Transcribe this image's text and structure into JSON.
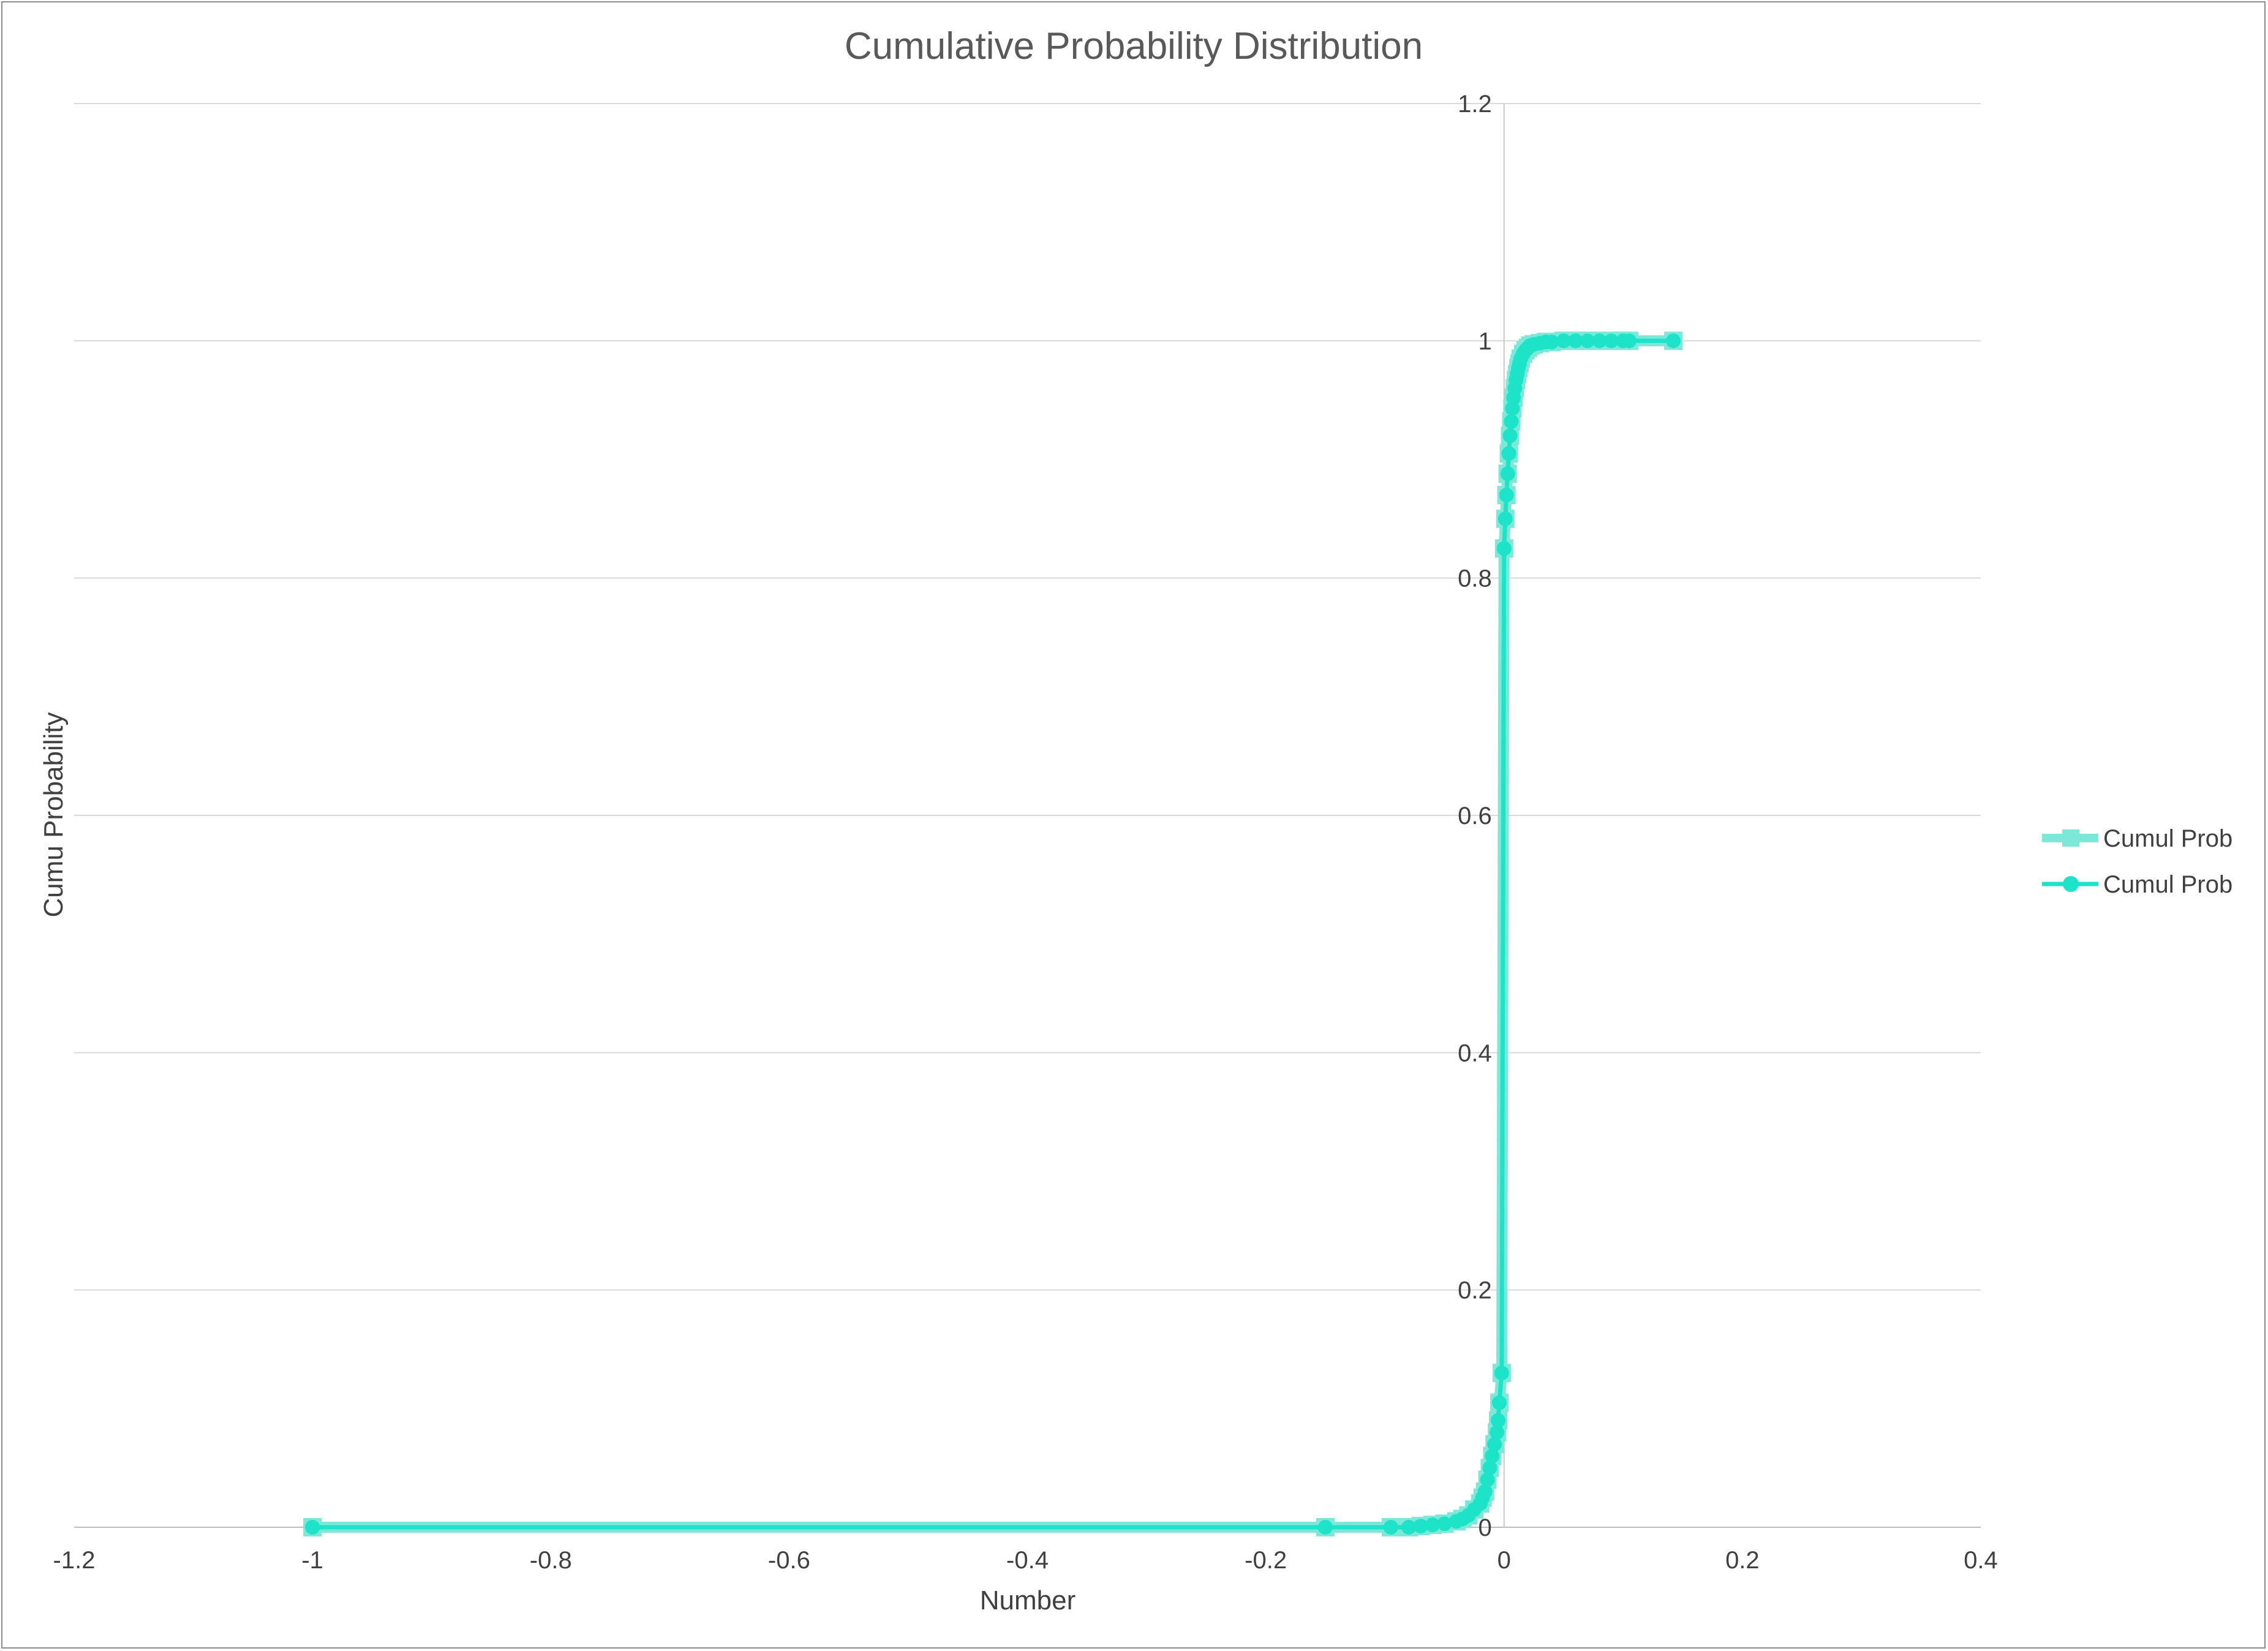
{
  "chart_data": {
    "type": "scatter",
    "title": "Cumulative Probability Distribution",
    "xlabel": "Number",
    "ylabel": "Cumu Probability",
    "xlim": [
      -1.2,
      0.4
    ],
    "ylim": [
      0,
      1.2
    ],
    "xticks": [
      -1.2,
      -1,
      -0.8,
      -0.6,
      -0.4,
      -0.2,
      0,
      0.2,
      0.4
    ],
    "yticks": [
      0,
      0.2,
      0.4,
      0.6,
      0.8,
      1,
      1.2
    ],
    "xtick_labels": [
      "-1.2",
      "-1",
      "-0.8",
      "-0.6",
      "-0.4",
      "-0.2",
      "0",
      "0.2",
      "0.4"
    ],
    "ytick_labels": [
      "0",
      "0.2",
      "0.4",
      "0.6",
      "0.8",
      "1",
      "1.2"
    ],
    "grid": true,
    "legend_position": "right",
    "series": [
      {
        "name": "Cumul Prob",
        "marker": "square",
        "color": "#7ee8d8",
        "x": [
          -1,
          -0.15,
          -0.095,
          -0.08,
          -0.07,
          -0.06,
          -0.05,
          -0.04,
          -0.035,
          -0.03,
          -0.025,
          -0.02,
          -0.018,
          -0.016,
          -0.014,
          -0.012,
          -0.01,
          -0.008,
          -0.006,
          -0.005,
          -0.004,
          -0.002,
          0,
          0.001,
          0.002,
          0.003,
          0.004,
          0.005,
          0.006,
          0.007,
          0.008,
          0.009,
          0.01,
          0.011,
          0.012,
          0.013,
          0.014,
          0.016,
          0.018,
          0.02,
          0.022,
          0.025,
          0.03,
          0.035,
          0.04,
          0.05,
          0.06,
          0.07,
          0.08,
          0.09,
          0.1,
          0.105,
          0.142
        ],
        "y": [
          0,
          0,
          0,
          0,
          0.001,
          0.002,
          0.003,
          0.005,
          0.007,
          0.01,
          0.015,
          0.02,
          0.025,
          0.03,
          0.04,
          0.05,
          0.06,
          0.07,
          0.08,
          0.09,
          0.105,
          0.13,
          0.825,
          0.85,
          0.87,
          0.888,
          0.905,
          0.92,
          0.932,
          0.943,
          0.952,
          0.96,
          0.967,
          0.972,
          0.977,
          0.981,
          0.985,
          0.989,
          0.992,
          0.994,
          0.996,
          0.997,
          0.998,
          0.999,
          0.999,
          1,
          1,
          1,
          1,
          1,
          1,
          1,
          1
        ]
      },
      {
        "name": "Cumul Prob",
        "marker": "circle",
        "color": "#1de3c8",
        "x": [
          -1,
          -0.15,
          -0.095,
          -0.08,
          -0.07,
          -0.06,
          -0.05,
          -0.04,
          -0.035,
          -0.03,
          -0.025,
          -0.02,
          -0.018,
          -0.016,
          -0.014,
          -0.012,
          -0.01,
          -0.008,
          -0.006,
          -0.005,
          -0.004,
          -0.002,
          0,
          0.001,
          0.002,
          0.003,
          0.004,
          0.005,
          0.006,
          0.007,
          0.008,
          0.009,
          0.01,
          0.011,
          0.012,
          0.013,
          0.014,
          0.016,
          0.018,
          0.02,
          0.022,
          0.025,
          0.03,
          0.035,
          0.04,
          0.05,
          0.06,
          0.07,
          0.08,
          0.09,
          0.1,
          0.105,
          0.142
        ],
        "y": [
          0,
          0,
          0,
          0,
          0.001,
          0.002,
          0.003,
          0.005,
          0.007,
          0.01,
          0.015,
          0.02,
          0.025,
          0.03,
          0.04,
          0.05,
          0.06,
          0.07,
          0.08,
          0.09,
          0.105,
          0.13,
          0.825,
          0.85,
          0.87,
          0.888,
          0.905,
          0.92,
          0.932,
          0.943,
          0.952,
          0.96,
          0.967,
          0.972,
          0.977,
          0.981,
          0.985,
          0.989,
          0.992,
          0.994,
          0.996,
          0.997,
          0.998,
          0.999,
          0.999,
          1,
          1,
          1,
          1,
          1,
          1,
          1,
          1
        ]
      }
    ]
  }
}
